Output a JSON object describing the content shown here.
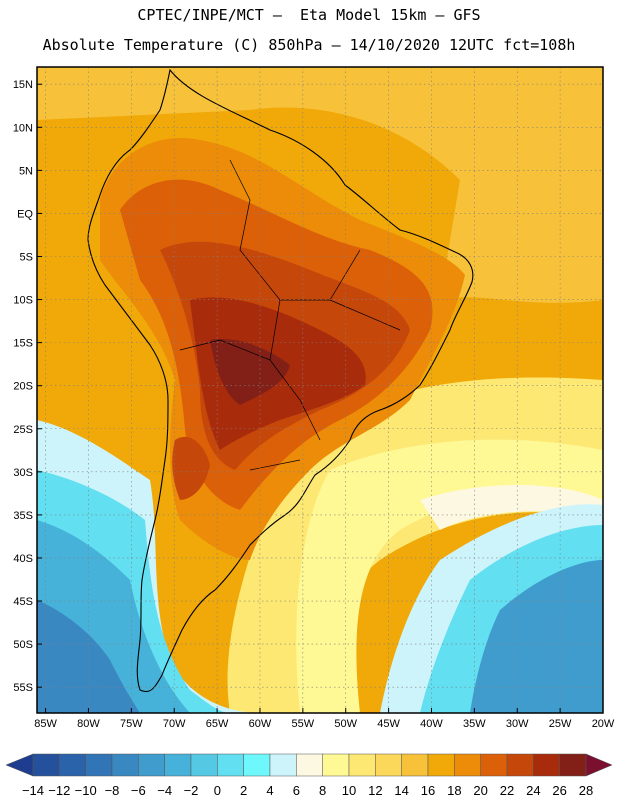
{
  "title": {
    "line1": "CPTEC/INPE/MCT –  Eta Model 15km – GFS",
    "line2": "Absolute Temperature (C) 850hPa – 14/10/2020 12UTC fct=108h"
  },
  "map": {
    "lat_labels": [
      "15N",
      "10N",
      "5N",
      "EQ",
      "5S",
      "10S",
      "15S",
      "20S",
      "25S",
      "30S",
      "35S",
      "40S",
      "45S",
      "50S",
      "55S"
    ],
    "lon_labels": [
      "85W",
      "80W",
      "75W",
      "70W",
      "65W",
      "60W",
      "55W",
      "50W",
      "45W",
      "40W",
      "35W",
      "30W",
      "25W",
      "20W"
    ],
    "lat_range": [
      17,
      -58
    ],
    "lon_range": [
      -86,
      -20
    ]
  },
  "colorbar": {
    "labels": [
      "-14",
      "-12",
      "-10",
      "-8",
      "-6",
      "-4",
      "-2",
      "0",
      "2",
      "4",
      "6",
      "8",
      "10",
      "12",
      "14",
      "16",
      "18",
      "20",
      "22",
      "24",
      "26",
      "28"
    ],
    "colors": [
      "#1e3d8f",
      "#24509c",
      "#2b63aa",
      "#3175b6",
      "#3a88c2",
      "#3f9ccd",
      "#47b2d9",
      "#55c9e4",
      "#62dff0",
      "#6ff8fb",
      "#cdf4fb",
      "#fdf8e1",
      "#fef895",
      "#fde873",
      "#fbd75a",
      "#f7c139",
      "#f0a909",
      "#ec8c08",
      "#dc6008",
      "#c6470a",
      "#a82b0c",
      "#822017",
      "#7a0f2e"
    ]
  }
}
